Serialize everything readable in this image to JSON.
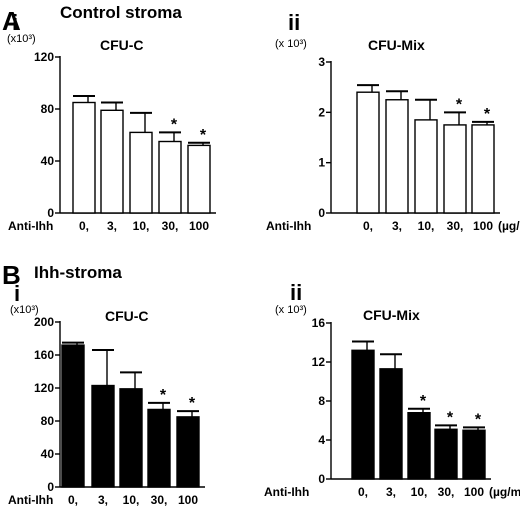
{
  "panels": {
    "A": {
      "letter": "A",
      "heading": "Control stroma"
    },
    "B": {
      "letter": "B",
      "heading": "Ihh-stroma"
    }
  },
  "chart_data": [
    {
      "type": "bar",
      "panel": "A",
      "sub": "i",
      "title": "CFU-C",
      "unit_label": "(x10³)",
      "xlabel": "Anti-Ihh",
      "categories": [
        "0,",
        "3,",
        "10,",
        "30,",
        "100"
      ],
      "x_unit": "",
      "values": [
        85,
        79,
        62,
        55,
        52
      ],
      "errors": [
        5,
        6,
        15,
        7,
        2
      ],
      "significant": [
        false,
        false,
        false,
        true,
        true
      ],
      "ylim": [
        0,
        120
      ],
      "yticks": [
        0,
        40,
        80,
        120
      ],
      "bar_color": "#ffffff"
    },
    {
      "type": "bar",
      "panel": "A",
      "sub": "ii",
      "title": "CFU-Mix",
      "unit_label": "(x 10³)",
      "xlabel": "Anti-Ihh",
      "categories": [
        "0,",
        "3,",
        "10,",
        "30,",
        "100"
      ],
      "x_unit": "(µg/mL)",
      "values": [
        2.4,
        2.25,
        1.85,
        1.75,
        1.75
      ],
      "errors": [
        0.14,
        0.17,
        0.4,
        0.25,
        0.06
      ],
      "significant": [
        false,
        false,
        false,
        true,
        true
      ],
      "ylim": [
        0,
        3
      ],
      "yticks": [
        0,
        1,
        2,
        3
      ],
      "bar_color": "#ffffff"
    },
    {
      "type": "bar",
      "panel": "B",
      "sub": "i",
      "title": "CFU-C",
      "unit_label": "(x10³)",
      "xlabel": "Anti-Ihh",
      "categories": [
        "0,",
        "3,",
        "10,",
        "30,",
        "100"
      ],
      "x_unit": "",
      "values": [
        172,
        123,
        119,
        94,
        85
      ],
      "errors": [
        3,
        43,
        20,
        8,
        7
      ],
      "significant": [
        false,
        false,
        false,
        true,
        true
      ],
      "ylim": [
        0,
        200
      ],
      "yticks": [
        0,
        40,
        80,
        120,
        160,
        200
      ],
      "bar_color": "#000000"
    },
    {
      "type": "bar",
      "panel": "B",
      "sub": "ii",
      "title": "CFU-Mix",
      "unit_label": "(x 10³)",
      "xlabel": "Anti-Ihh",
      "categories": [
        "0,",
        "3,",
        "10,",
        "30,",
        "100"
      ],
      "x_unit": "(µg/mL)",
      "values": [
        13.2,
        11.3,
        6.8,
        5.1,
        5.0
      ],
      "errors": [
        0.9,
        1.5,
        0.4,
        0.4,
        0.3
      ],
      "significant": [
        false,
        false,
        true,
        true,
        true
      ],
      "ylim": [
        0,
        16
      ],
      "yticks": [
        0,
        4,
        8,
        12,
        16
      ],
      "bar_color": "#000000"
    }
  ]
}
